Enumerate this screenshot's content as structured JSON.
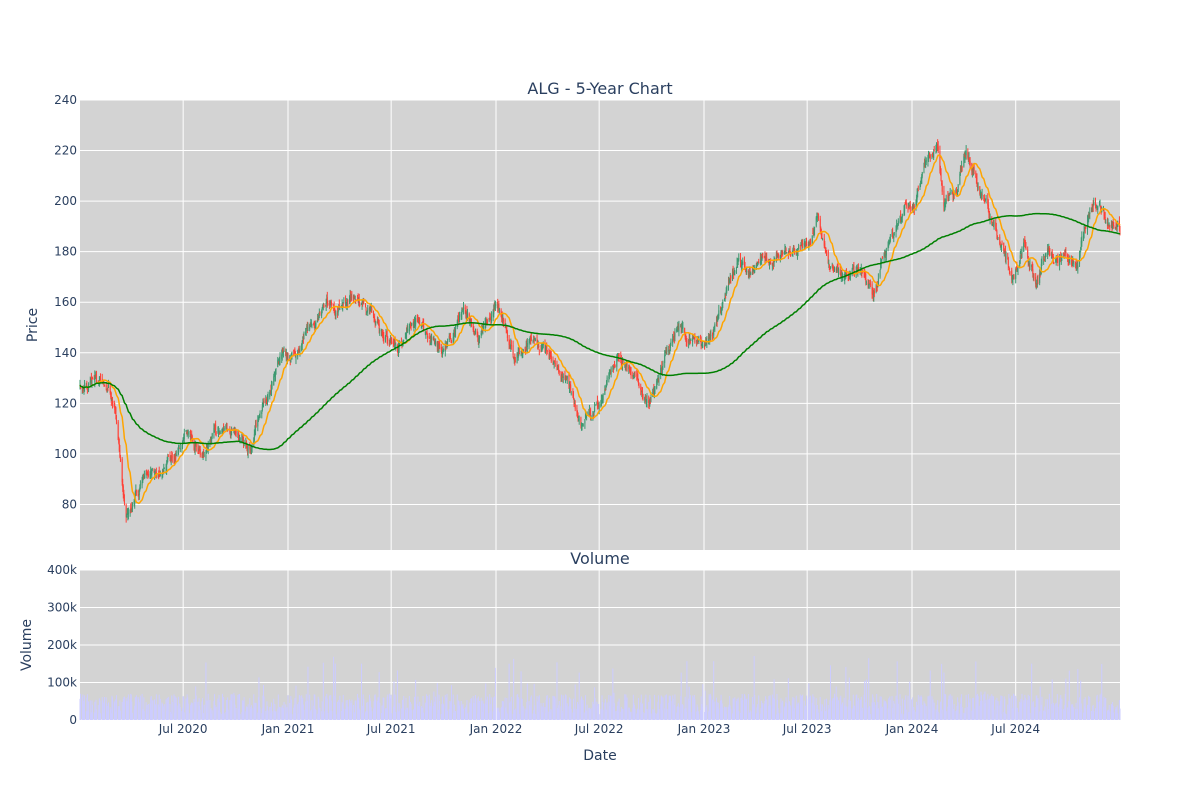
{
  "chart_data": {
    "type": "candlestick",
    "price_panel": {
      "title": "ALG - 5-Year Chart",
      "ylabel": "Price",
      "ylim": [
        62,
        240
      ],
      "yticks": [
        80,
        100,
        120,
        140,
        160,
        180,
        200,
        220,
        240
      ],
      "grid": true,
      "colors": {
        "increasing": "#3d9970",
        "decreasing": "#ff4136",
        "ma_short": "#ffa500",
        "ma_long": "#008000",
        "background": "#d3d3d3"
      },
      "close_anchors": [
        [
          "2020-01-02",
          127
        ],
        [
          "2020-02-01",
          130
        ],
        [
          "2020-02-20",
          128
        ],
        [
          "2020-03-05",
          118
        ],
        [
          "2020-03-23",
          75
        ],
        [
          "2020-04-10",
          86
        ],
        [
          "2020-05-10",
          92
        ],
        [
          "2020-06-15",
          100
        ],
        [
          "2020-07-05",
          110
        ],
        [
          "2020-08-05",
          101
        ],
        [
          "2020-09-01",
          110
        ],
        [
          "2020-10-01",
          108
        ],
        [
          "2020-10-25",
          102
        ],
        [
          "2020-11-20",
          122
        ],
        [
          "2020-12-15",
          138
        ],
        [
          "2021-01-15",
          138
        ],
        [
          "2021-02-15",
          152
        ],
        [
          "2021-03-10",
          158
        ],
        [
          "2021-04-15",
          160
        ],
        [
          "2021-05-10",
          162
        ],
        [
          "2021-06-15",
          150
        ],
        [
          "2021-07-15",
          145
        ],
        [
          "2021-08-15",
          152
        ],
        [
          "2021-09-10",
          145
        ],
        [
          "2021-10-01",
          140
        ],
        [
          "2021-11-05",
          155
        ],
        [
          "2021-12-01",
          145
        ],
        [
          "2022-01-05",
          158
        ],
        [
          "2022-02-01",
          140
        ],
        [
          "2022-03-01",
          145
        ],
        [
          "2022-04-01",
          140
        ],
        [
          "2022-05-01",
          130
        ],
        [
          "2022-06-01",
          112
        ],
        [
          "2022-07-01",
          118
        ],
        [
          "2022-08-01",
          138
        ],
        [
          "2022-09-01",
          132
        ],
        [
          "2022-10-01",
          122
        ],
        [
          "2022-10-25",
          138
        ],
        [
          "2022-11-15",
          150
        ],
        [
          "2022-12-15",
          145
        ],
        [
          "2023-01-01",
          142
        ],
        [
          "2023-02-01",
          155
        ],
        [
          "2023-03-01",
          178
        ],
        [
          "2023-03-20",
          172
        ],
        [
          "2023-04-15",
          180
        ],
        [
          "2023-05-15",
          178
        ],
        [
          "2023-06-15",
          182
        ],
        [
          "2023-07-05",
          185
        ],
        [
          "2023-07-20",
          196
        ],
        [
          "2023-08-10",
          172
        ],
        [
          "2023-09-10",
          170
        ],
        [
          "2023-10-10",
          172
        ],
        [
          "2023-10-25",
          160
        ],
        [
          "2023-11-10",
          178
        ],
        [
          "2023-12-01",
          186
        ],
        [
          "2023-12-20",
          200
        ],
        [
          "2024-01-05",
          198
        ],
        [
          "2024-01-25",
          215
        ],
        [
          "2024-02-15",
          220
        ],
        [
          "2024-02-25",
          198
        ],
        [
          "2024-03-20",
          205
        ],
        [
          "2024-04-05",
          220
        ],
        [
          "2024-04-20",
          213
        ],
        [
          "2024-05-10",
          198
        ],
        [
          "2024-06-01",
          185
        ],
        [
          "2024-06-25",
          168
        ],
        [
          "2024-07-15",
          182
        ],
        [
          "2024-08-05",
          170
        ],
        [
          "2024-08-25",
          180
        ],
        [
          "2024-09-15",
          178
        ],
        [
          "2024-10-15",
          172
        ],
        [
          "2024-10-25",
          185
        ],
        [
          "2024-11-10",
          198
        ],
        [
          "2024-11-25",
          200
        ],
        [
          "2024-12-10",
          192
        ],
        [
          "2024-12-31",
          186
        ]
      ]
    },
    "volume_panel": {
      "title": "Volume",
      "ylabel": "Volume",
      "ylim": [
        0,
        400000
      ],
      "yticks": [
        0,
        100000,
        200000,
        300000,
        400000
      ],
      "ytick_labels": [
        "0",
        "100k",
        "200k",
        "300k",
        "400k"
      ],
      "color": "#ccccff",
      "grid": true
    },
    "xlabel": "Date",
    "x_range": [
      "2020-01-02",
      "2024-12-31"
    ],
    "x_ticks": [
      {
        "date": "2020-07-01",
        "label": "Jul 2020"
      },
      {
        "date": "2021-01-01",
        "label": "Jan 2021"
      },
      {
        "date": "2021-07-01",
        "label": "Jul 2021"
      },
      {
        "date": "2022-01-01",
        "label": "Jan 2022"
      },
      {
        "date": "2022-07-01",
        "label": "Jul 2022"
      },
      {
        "date": "2023-01-01",
        "label": "Jan 2023"
      },
      {
        "date": "2023-07-01",
        "label": "Jul 2023"
      },
      {
        "date": "2024-01-01",
        "label": "Jan 2024"
      },
      {
        "date": "2024-07-01",
        "label": "Jul 2024"
      }
    ]
  }
}
